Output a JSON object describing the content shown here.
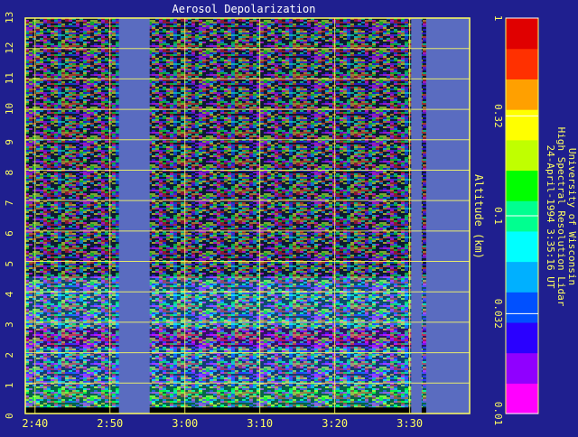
{
  "chart_data": {
    "type": "heatmap",
    "title": "Aerosol Depolarization",
    "xlabel": "",
    "ylabel": "Altitude (km)",
    "x_ticks": [
      "2:40",
      "2:50",
      "3:00",
      "3:10",
      "3:20",
      "3:30"
    ],
    "x_tick_minutes": [
      160,
      170,
      180,
      190,
      200,
      210
    ],
    "xlim_minutes": [
      158.7,
      218
    ],
    "y_ticks": [
      0,
      1,
      2,
      3,
      4,
      5,
      6,
      7,
      8,
      9,
      10,
      11,
      12,
      13
    ],
    "ylim": [
      0,
      13
    ],
    "grid": true,
    "data_gaps_minutes": [
      [
        171.2,
        175.3
      ],
      [
        210.2,
        211.6
      ],
      [
        212.2,
        218
      ]
    ],
    "layers": [
      {
        "altitude_km": [
          0.2,
          0.9
        ],
        "depolarization": "0.03-0.1",
        "appearance": "green / cyan"
      },
      {
        "altitude_km": [
          0.9,
          2.2
        ],
        "depolarization": "0.02-0.05",
        "appearance": "blue / cyan"
      },
      {
        "altitude_km": [
          2.2,
          2.8
        ],
        "depolarization": "0.01-0.03",
        "appearance": "purple / magenta band"
      },
      {
        "altitude_km": [
          2.8,
          4.5
        ],
        "depolarization": "0.03-0.1",
        "appearance": "cyan / blue mix"
      },
      {
        "altitude_km": [
          4.5,
          13
        ],
        "depolarization": "noise",
        "appearance": "mixed noise"
      }
    ],
    "colorbar": {
      "scale": "log",
      "min": 0.01,
      "max": 1,
      "tick_labels": [
        "0.01",
        "0.032",
        "0.1",
        "0.32",
        "1"
      ],
      "tick_values": [
        0.01,
        0.032,
        0.1,
        0.32,
        1
      ],
      "colors_low_to_high": [
        "#ff00ff",
        "#9000ff",
        "#2a00ff",
        "#0050ff",
        "#00b0ff",
        "#00ffff",
        "#00ff90",
        "#00ff00",
        "#c0ff00",
        "#ffff00",
        "#ffa000",
        "#ff3000",
        "#e00000"
      ]
    },
    "annotation": [
      "University of Wisconsin",
      "High Spectral Resolution Lidar",
      "24-April-1994  3:35:16 UT"
    ]
  },
  "colors": {
    "background": "#1f1f8f",
    "axes_and_text": "#ffff60",
    "no_data": "#5a6cc0",
    "ground": "#000000"
  }
}
